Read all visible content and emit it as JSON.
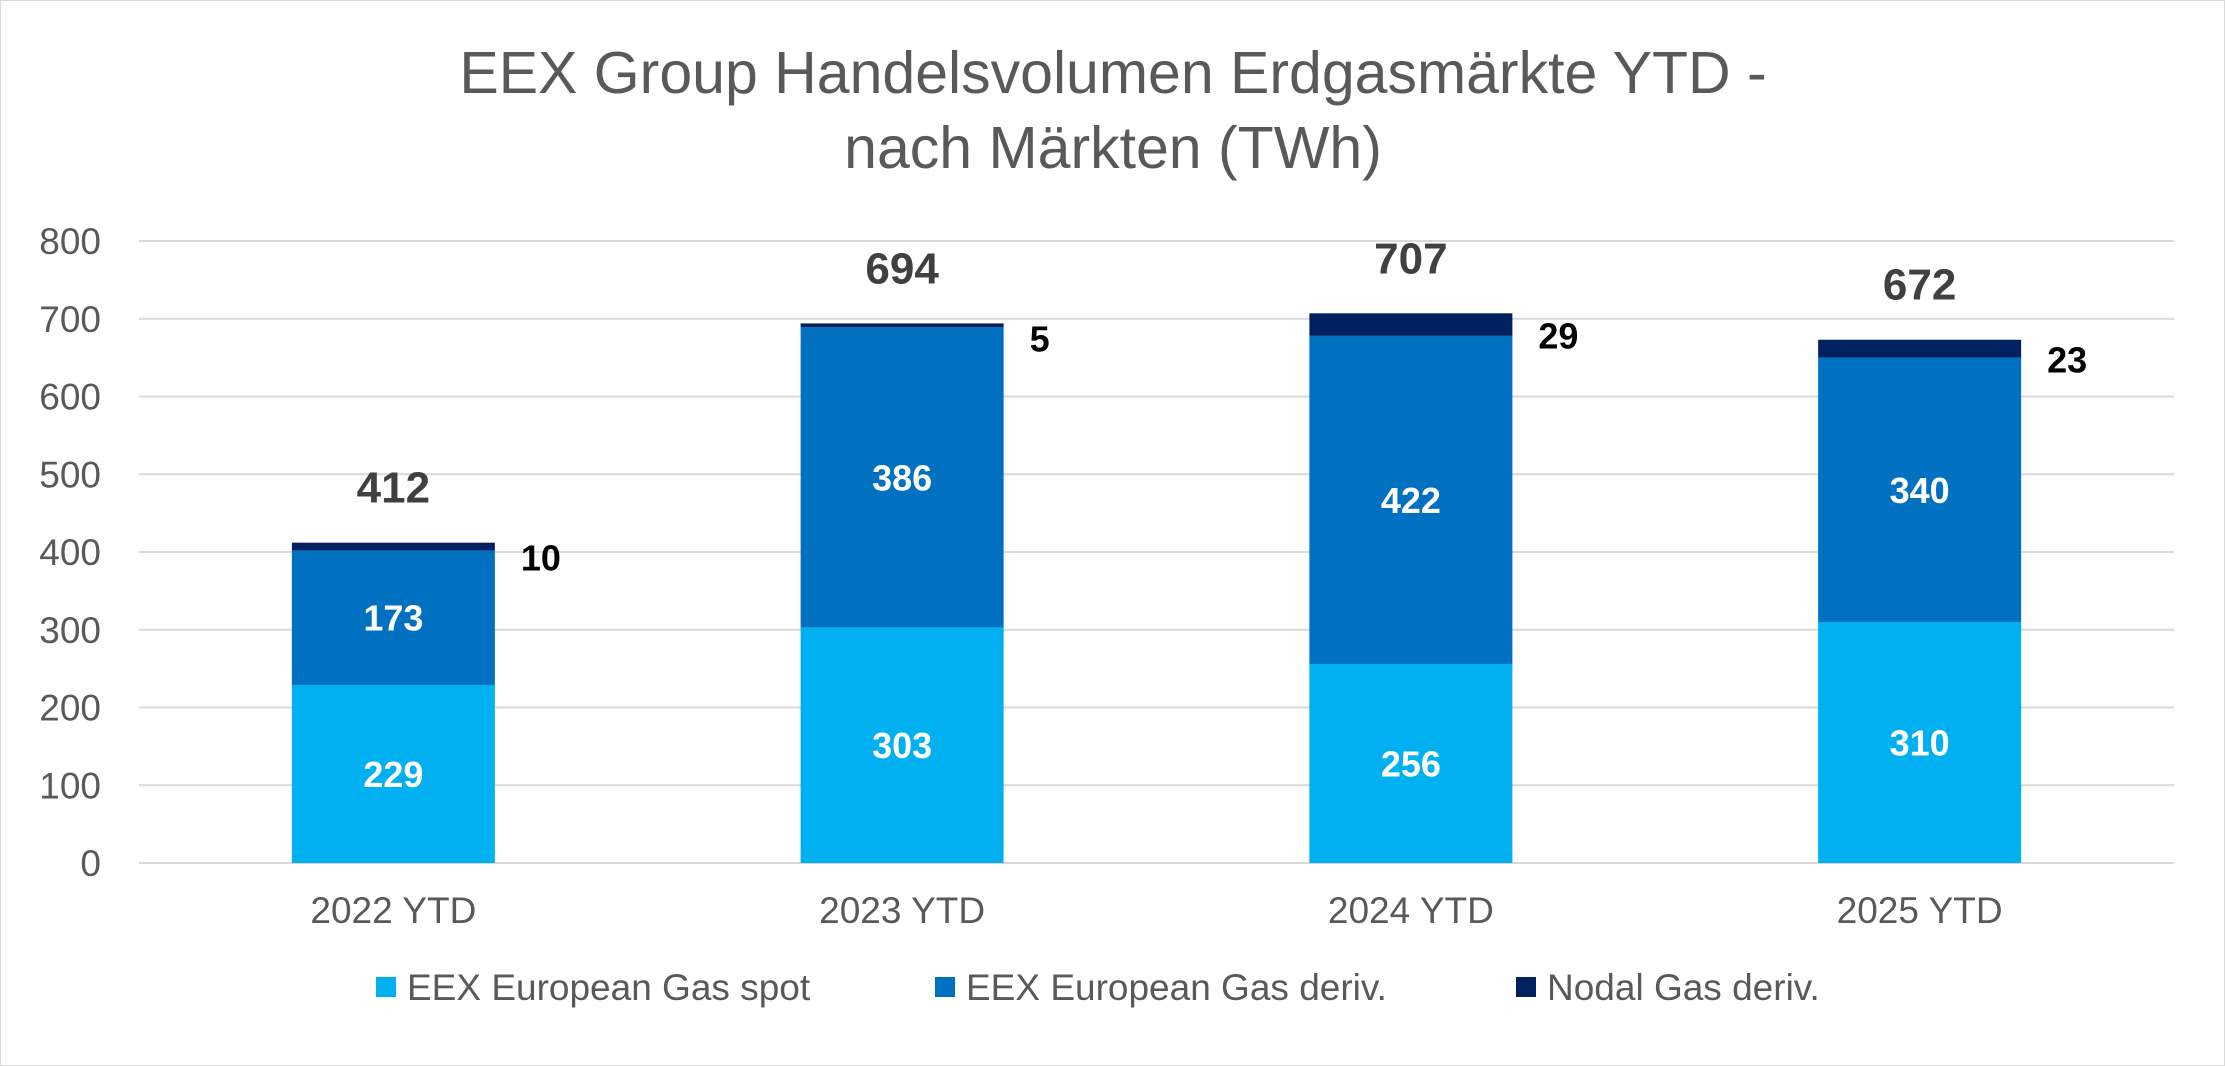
{
  "chart_data": {
    "type": "bar",
    "stacked": true,
    "title": "EEX Group Handelsvolumen Erdgasmärkte YTD - nach Märkten (TWh)",
    "title_lines": [
      "EEX Group Handelsvolumen Erdgasmärkte YTD -",
      "nach Märkten (TWh)"
    ],
    "xlabel": "",
    "ylabel": "",
    "ylim": [
      0,
      800
    ],
    "yticks": [
      0,
      100,
      200,
      300,
      400,
      500,
      600,
      700,
      800
    ],
    "grid": true,
    "legend_position": "bottom",
    "categories": [
      "2022 YTD",
      "2023 YTD",
      "2024 YTD",
      "2025 YTD"
    ],
    "series": [
      {
        "name": "EEX European Gas spot",
        "color": "#00B0F0",
        "values": [
          229,
          303,
          256,
          310
        ]
      },
      {
        "name": "EEX European Gas deriv.",
        "color": "#0070C0",
        "values": [
          173,
          386,
          422,
          340
        ]
      },
      {
        "name": "Nodal Gas deriv.",
        "color": "#002060",
        "values": [
          10,
          5,
          29,
          23
        ]
      }
    ],
    "totals": [
      412,
      694,
      707,
      672
    ]
  }
}
